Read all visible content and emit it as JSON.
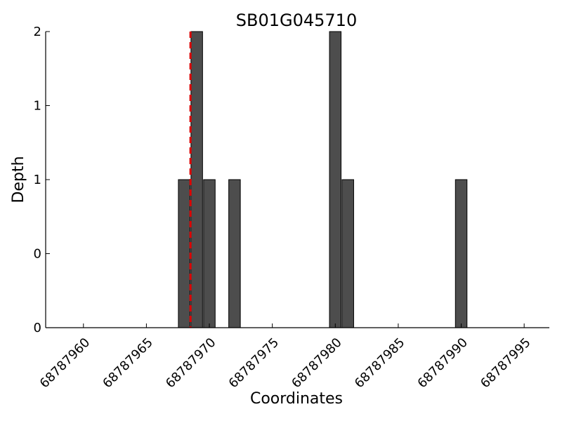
{
  "chart_data": {
    "type": "bar",
    "title": "SB01G045710",
    "xlabel": "Coordinates",
    "ylabel": "Depth",
    "xlim": [
      68787957,
      68787997
    ],
    "ylim": [
      0,
      2
    ],
    "x_ticks": [
      68787960,
      68787965,
      68787970,
      68787975,
      68787980,
      68787985,
      68787990,
      68787995
    ],
    "y_ticks": [
      0,
      0.5,
      1,
      1.5,
      2
    ],
    "y_tick_labels": [
      "0",
      "0",
      "1",
      "1",
      "2"
    ],
    "series": [
      {
        "x": [
          68787968,
          68787969,
          68787970,
          68787972,
          68787980,
          68787981,
          68787990
        ],
        "values": [
          1,
          2,
          1,
          1,
          2,
          1,
          1
        ]
      }
    ],
    "marker_x": 68787968.5,
    "colors": {
      "bar": "#4d4d4d",
      "marker": "#dd0000"
    }
  }
}
